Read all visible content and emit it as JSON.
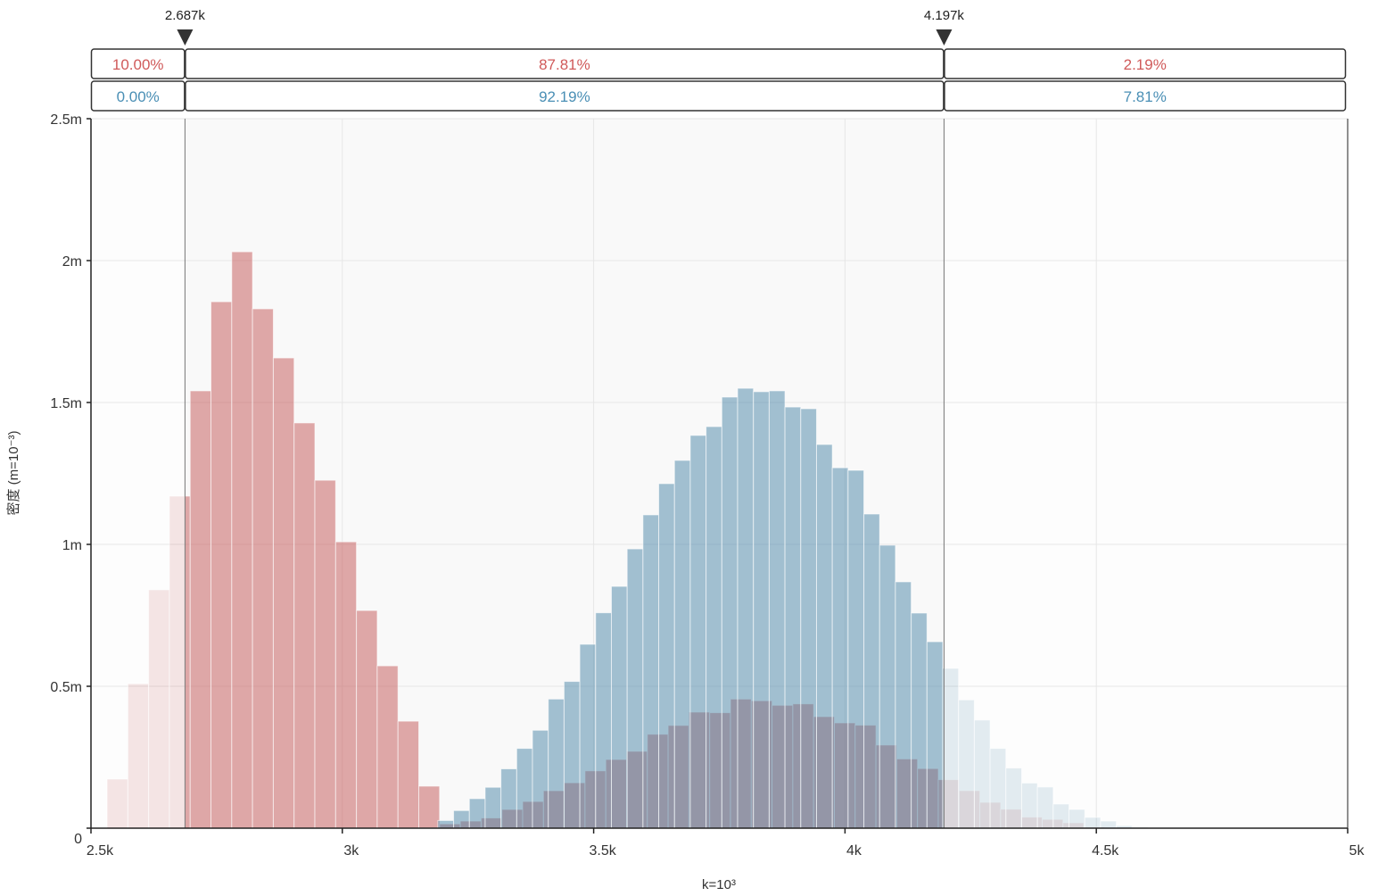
{
  "chart_data": {
    "type": "bar",
    "title": "",
    "xlabel": "k=10³",
    "ylabel": "密度 (m=10⁻³)",
    "xlim": [
      2500,
      5000
    ],
    "ylim": [
      0,
      2.5
    ],
    "x_ticks": [
      2500,
      3000,
      3500,
      4000,
      4500,
      5000
    ],
    "x_tick_labels": [
      "2.5k",
      "3k",
      "3.5k",
      "4k",
      "4.5k",
      "5k"
    ],
    "y_ticks": [
      0,
      0.5,
      1,
      1.5,
      2,
      2.5
    ],
    "y_tick_labels": [
      "0",
      "0.5m",
      "1m",
      "1.5m",
      "2m",
      "2.5m"
    ],
    "grid": true,
    "thresholds": [
      {
        "value": 2687,
        "label": "2.687k"
      },
      {
        "value": 4197,
        "label": "4.197k"
      }
    ],
    "region_percentages": [
      {
        "series": "red",
        "color": "#d05a5a",
        "values": [
          "10.00%",
          "87.81%",
          "2.19%"
        ]
      },
      {
        "series": "blue",
        "color": "#4a8fb5",
        "values": [
          "0.00%",
          "92.19%",
          "7.81%"
        ]
      }
    ],
    "series": [
      {
        "name": "red",
        "color": "#c45555",
        "bin_start": 2532,
        "bin_width": 41.34,
        "values": [
          0.173,
          0.509,
          0.84,
          1.17,
          1.541,
          1.855,
          2.031,
          1.83,
          1.657,
          1.428,
          1.226,
          1.009,
          0.767,
          0.572,
          0.377,
          0.148,
          0.015,
          0.025,
          0.036,
          0.066,
          0.094,
          0.132,
          0.16,
          0.202,
          0.242,
          0.271,
          0.331,
          0.362,
          0.409,
          0.407,
          0.455,
          0.449,
          0.433,
          0.438,
          0.393,
          0.371,
          0.363,
          0.293,
          0.244,
          0.21,
          0.171,
          0.132,
          0.091,
          0.067,
          0.039,
          0.031,
          0.019,
          0.004
        ]
      },
      {
        "name": "blue",
        "color": "#4a85a8",
        "bin_start": 3190,
        "bin_width": 31.39,
        "values": [
          0.027,
          0.062,
          0.104,
          0.144,
          0.209,
          0.281,
          0.345,
          0.455,
          0.517,
          0.648,
          0.759,
          0.852,
          0.984,
          1.104,
          1.214,
          1.296,
          1.384,
          1.415,
          1.519,
          1.55,
          1.538,
          1.541,
          1.484,
          1.478,
          1.352,
          1.27,
          1.261,
          1.107,
          0.997,
          0.868,
          0.758,
          0.657,
          0.563,
          0.452,
          0.381,
          0.281,
          0.212,
          0.159,
          0.145,
          0.085,
          0.066,
          0.038,
          0.025,
          0.009,
          0.004
        ]
      }
    ]
  }
}
